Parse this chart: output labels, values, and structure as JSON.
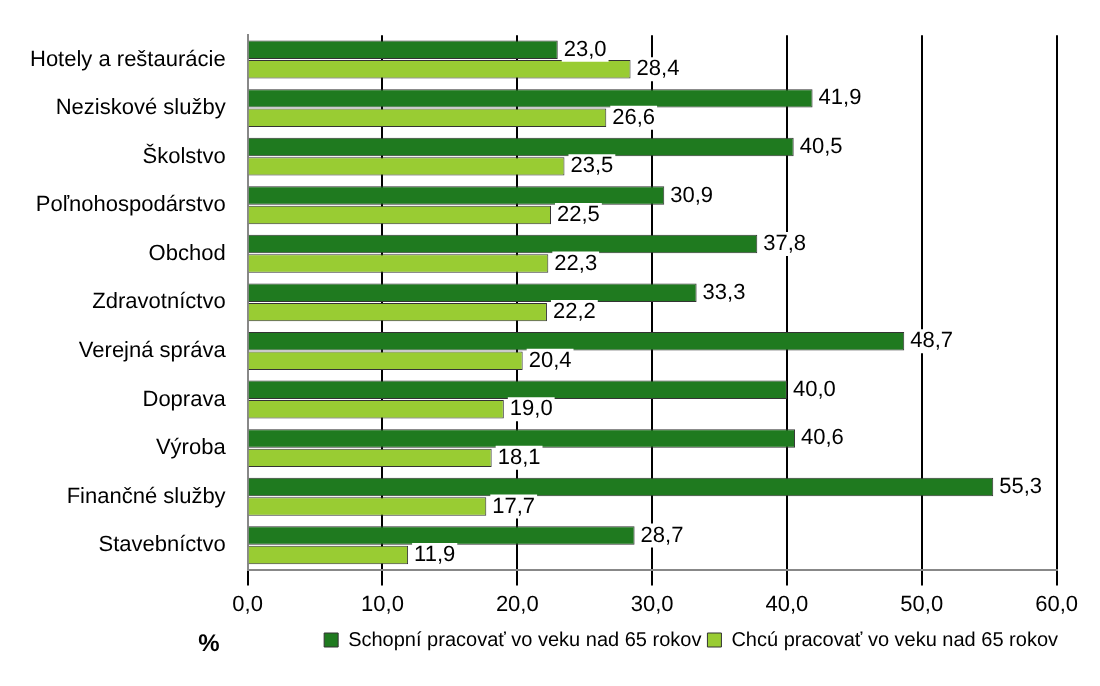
{
  "chart_data": {
    "type": "bar",
    "orientation": "horizontal",
    "xlabel": "%",
    "categories": [
      "Hotely a reštaurácie",
      "Neziskové služby",
      "Školstvo",
      "Poľnohospodárstvo",
      "Obchod",
      "Zdravotníctvo",
      "Verejná správa",
      "Doprava",
      "Výroba",
      "Finančné služby",
      "Stavebníctvo"
    ],
    "series": [
      {
        "name": "Schopní pracovať vo veku nad 65 rokov",
        "color": "#1f7a1f",
        "values": [
          23.0,
          41.9,
          40.5,
          30.9,
          37.8,
          33.3,
          48.7,
          40.0,
          40.6,
          55.3,
          28.7
        ],
        "value_labels": [
          "23,0",
          "41,9",
          "40,5",
          "30,9",
          "37,8",
          "33,3",
          "48,7",
          "40,0",
          "40,6",
          "55,3",
          "28,7"
        ]
      },
      {
        "name": "Chcú pracovať vo veku nad 65 rokov",
        "color": "#99cc33",
        "values": [
          28.4,
          26.6,
          23.5,
          22.5,
          22.3,
          22.2,
          20.4,
          19.0,
          18.1,
          17.7,
          11.9
        ],
        "value_labels": [
          "28,4",
          "26,6",
          "23,5",
          "22,5",
          "22,3",
          "22,2",
          "20,4",
          "19,0",
          "18,1",
          "17,7",
          "11,9"
        ]
      }
    ],
    "xlim": [
      0,
      60
    ],
    "xticks": [
      {
        "value": 0,
        "label": "0,0"
      },
      {
        "value": 10,
        "label": "10,0"
      },
      {
        "value": 20,
        "label": "20,0"
      },
      {
        "value": 30,
        "label": "30,0"
      },
      {
        "value": 40,
        "label": "40,0"
      },
      {
        "value": 50,
        "label": "50,0"
      },
      {
        "value": 60,
        "label": "60,0"
      }
    ],
    "grid": "x",
    "legend": "bottom"
  }
}
